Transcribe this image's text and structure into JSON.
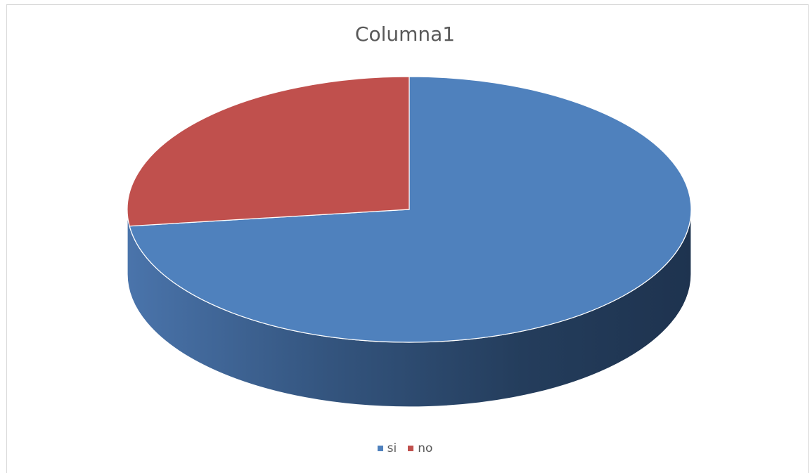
{
  "chart_data": {
    "type": "pie",
    "title": "Columna1",
    "categories": [
      "si",
      "no"
    ],
    "values": [
      73,
      27
    ],
    "colors": [
      "#4f81bd",
      "#c0504d"
    ],
    "legend_position": "bottom",
    "style": "3d"
  }
}
